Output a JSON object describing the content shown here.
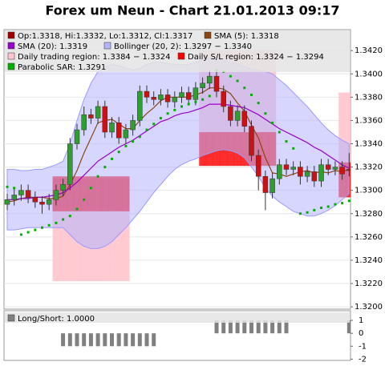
{
  "chart_data": [
    {
      "type": "candlestick",
      "title": "Forex um Neun - Chart 21.01.2013 09:17",
      "ylim": [
        1.3198,
        1.3438
      ],
      "yticks": [
        {
          "value": 1.32,
          "label": "1.3200"
        },
        {
          "value": 1.322,
          "label": "1.3220"
        },
        {
          "value": 1.324,
          "label": "1.3240"
        },
        {
          "value": 1.326,
          "label": "1.3260"
        },
        {
          "value": 1.328,
          "label": "1.3280"
        },
        {
          "value": 1.33,
          "label": "1.3300"
        },
        {
          "value": 1.332,
          "label": "1.3320"
        },
        {
          "value": 1.334,
          "label": "1.3340"
        },
        {
          "value": 1.336,
          "label": "1.3360"
        },
        {
          "value": 1.338,
          "label": "1.3380"
        },
        {
          "value": 1.34,
          "label": "1.3400"
        },
        {
          "value": 1.342,
          "label": "1.3420"
        }
      ],
      "grid": true,
      "series": [
        {
          "type": "candlestick",
          "name": "Op:1.3318, Hi:1.3332, Lo:1.3312, Cl:1.3317",
          "color": "#a00000",
          "up_color": "#2e9e2e",
          "down_color": "#cc1111",
          "open": [
            1.3288,
            1.3292,
            1.3296,
            1.33,
            1.3294,
            1.329,
            1.3288,
            1.3292,
            1.33,
            1.3305,
            1.334,
            1.3352,
            1.3365,
            1.3362,
            1.3372,
            1.335,
            1.3358,
            1.3345,
            1.3352,
            1.336,
            1.3385,
            1.338,
            1.3378,
            1.3382,
            1.3376,
            1.338,
            1.3384,
            1.3378,
            1.3388,
            1.3392,
            1.3398,
            1.3385,
            1.3372,
            1.336,
            1.3368,
            1.3355,
            1.333,
            1.3312,
            1.3298,
            1.331,
            1.3322,
            1.3318,
            1.332,
            1.3312,
            1.3316,
            1.3308,
            1.3322,
            1.3318,
            1.332,
            1.3318
          ],
          "high": [
            1.3297,
            1.3301,
            1.3305,
            1.3305,
            1.3299,
            1.3295,
            1.3297,
            1.3305,
            1.331,
            1.3345,
            1.3357,
            1.3372,
            1.337,
            1.3377,
            1.3377,
            1.3363,
            1.3363,
            1.3357,
            1.3365,
            1.339,
            1.339,
            1.3385,
            1.3387,
            1.3387,
            1.3385,
            1.3389,
            1.3389,
            1.3393,
            1.3397,
            1.3403,
            1.3403,
            1.339,
            1.3377,
            1.3373,
            1.3373,
            1.336,
            1.3335,
            1.3317,
            1.3315,
            1.3327,
            1.3327,
            1.3325,
            1.3325,
            1.3321,
            1.3321,
            1.3327,
            1.3327,
            1.3325,
            1.3325,
            1.3332
          ],
          "low": [
            1.3283,
            1.3287,
            1.3291,
            1.3289,
            1.3285,
            1.328,
            1.3283,
            1.3287,
            1.3295,
            1.33,
            1.3335,
            1.3347,
            1.3357,
            1.3357,
            1.3345,
            1.3345,
            1.334,
            1.334,
            1.3347,
            1.3355,
            1.3375,
            1.3373,
            1.3373,
            1.3371,
            1.3371,
            1.3375,
            1.3373,
            1.3373,
            1.3383,
            1.3387,
            1.338,
            1.3367,
            1.3355,
            1.3355,
            1.335,
            1.3325,
            1.33,
            1.3283,
            1.3293,
            1.3305,
            1.3313,
            1.3313,
            1.3305,
            1.3307,
            1.3303,
            1.3303,
            1.3313,
            1.3313,
            1.3309,
            1.3312
          ],
          "close": [
            1.3292,
            1.3296,
            1.33,
            1.3294,
            1.329,
            1.3288,
            1.3292,
            1.33,
            1.3305,
            1.334,
            1.3352,
            1.3365,
            1.3362,
            1.3372,
            1.335,
            1.3358,
            1.3345,
            1.3352,
            1.336,
            1.3385,
            1.338,
            1.3378,
            1.3382,
            1.3376,
            1.338,
            1.3384,
            1.3378,
            1.3388,
            1.3392,
            1.3398,
            1.3385,
            1.3372,
            1.336,
            1.3368,
            1.3355,
            1.333,
            1.3312,
            1.3298,
            1.331,
            1.3322,
            1.3318,
            1.332,
            1.3312,
            1.3316,
            1.3308,
            1.3322,
            1.3318,
            1.332,
            1.3314,
            1.3317
          ]
        },
        {
          "type": "line",
          "name": "SMA (5): 1.3318",
          "color": "#8b4513",
          "values": [
            1.329,
            1.3291,
            1.3293,
            1.3294,
            1.3294,
            1.3294,
            1.3293,
            1.3293,
            1.3295,
            1.3305,
            1.3317,
            1.3332,
            1.3345,
            1.3358,
            1.336,
            1.3361,
            1.3357,
            1.3353,
            1.3353,
            1.336,
            1.3366,
            1.3371,
            1.3377,
            1.338,
            1.338,
            1.338,
            1.338,
            1.3382,
            1.3384,
            1.3388,
            1.3388,
            1.3387,
            1.3383,
            1.3375,
            1.3368,
            1.3356,
            1.3345,
            1.3328,
            1.3315,
            1.3314,
            1.3312,
            1.3314,
            1.3316,
            1.3317,
            1.3315,
            1.3316,
            1.3315,
            1.3317,
            1.3316,
            1.3318
          ]
        },
        {
          "type": "line",
          "name": "SMA (20): 1.3319",
          "color": "#9900cc",
          "values": [
            1.3292,
            1.3292,
            1.3293,
            1.3293,
            1.3294,
            1.3294,
            1.3295,
            1.3296,
            1.3298,
            1.3302,
            1.3307,
            1.3313,
            1.3319,
            1.3325,
            1.3329,
            1.3333,
            1.3337,
            1.334,
            1.3343,
            1.3347,
            1.3351,
            1.3355,
            1.3359,
            1.3361,
            1.3364,
            1.3366,
            1.3367,
            1.3369,
            1.3371,
            1.3374,
            1.3374,
            1.3374,
            1.3373,
            1.3372,
            1.3371,
            1.3368,
            1.3365,
            1.3361,
            1.3357,
            1.3353,
            1.335,
            1.3347,
            1.3344,
            1.3341,
            1.3337,
            1.3334,
            1.333,
            1.3326,
            1.3322,
            1.3319
          ]
        },
        {
          "type": "band",
          "name": "Bollinger (20, 2): 1.3297 − 1.3340",
          "color": "#b4b4ff",
          "upper": [
            1.3318,
            1.3318,
            1.3317,
            1.3317,
            1.3318,
            1.3318,
            1.332,
            1.3322,
            1.3325,
            1.334,
            1.336,
            1.3378,
            1.3392,
            1.3402,
            1.3406,
            1.3408,
            1.3407,
            1.3405,
            1.3403,
            1.3405,
            1.3408,
            1.341,
            1.341,
            1.3409,
            1.3408,
            1.3408,
            1.3408,
            1.341,
            1.3412,
            1.3414,
            1.3413,
            1.3412,
            1.341,
            1.3408,
            1.3406,
            1.3404,
            1.3403,
            1.3402,
            1.34,
            1.3395,
            1.339,
            1.3384,
            1.3378,
            1.3372,
            1.3365,
            1.3358,
            1.3352,
            1.3347,
            1.3343,
            1.334
          ],
          "lower": [
            1.3266,
            1.3266,
            1.3267,
            1.3268,
            1.3268,
            1.3268,
            1.3268,
            1.3268,
            1.3268,
            1.3262,
            1.3256,
            1.3252,
            1.325,
            1.325,
            1.3252,
            1.3256,
            1.3262,
            1.3268,
            1.3275,
            1.3282,
            1.329,
            1.3298,
            1.3305,
            1.3312,
            1.3318,
            1.3322,
            1.3325,
            1.3327,
            1.333,
            1.3332,
            1.3334,
            1.3335,
            1.3334,
            1.3332,
            1.3328,
            1.332,
            1.3312,
            1.3302,
            1.3295,
            1.329,
            1.3286,
            1.3282,
            1.328,
            1.3278,
            1.3278,
            1.328,
            1.3283,
            1.3287,
            1.3292,
            1.3297
          ]
        },
        {
          "type": "region",
          "name": "Daily trading region: 1.3384 − 1.3324",
          "color": "#ffc4cc",
          "upper": [
            null,
            null,
            null,
            null,
            null,
            null,
            null,
            1.331,
            1.331,
            1.331,
            1.331,
            1.331,
            1.331,
            1.331,
            1.331,
            1.331,
            1.331,
            1.331,
            null,
            null,
            null,
            null,
            null,
            null,
            null,
            null,
            null,
            null,
            1.342,
            1.342,
            1.342,
            1.342,
            1.342,
            1.342,
            1.342,
            1.342,
            1.342,
            1.342,
            1.342,
            null,
            null,
            null,
            null,
            null,
            null,
            null,
            null,
            null,
            1.3384,
            1.3384
          ],
          "lower": [
            null,
            null,
            null,
            null,
            null,
            null,
            null,
            1.3222,
            1.3222,
            1.3222,
            1.3222,
            1.3222,
            1.3222,
            1.3222,
            1.3222,
            1.3222,
            1.3222,
            1.3222,
            null,
            null,
            null,
            null,
            null,
            null,
            null,
            null,
            null,
            null,
            1.335,
            1.335,
            1.335,
            1.335,
            1.335,
            1.335,
            1.335,
            1.335,
            1.335,
            1.335,
            1.335,
            null,
            null,
            null,
            null,
            null,
            null,
            null,
            null,
            null,
            1.3324,
            1.3324
          ]
        },
        {
          "type": "region",
          "name": "Daily S/L region: 1.3324 − 1.3294",
          "color": "#ff0000",
          "upper": [
            null,
            null,
            null,
            null,
            null,
            null,
            null,
            1.3312,
            1.3312,
            1.3312,
            1.3312,
            1.3312,
            1.3312,
            1.3312,
            1.3312,
            1.3312,
            1.3312,
            1.3312,
            null,
            null,
            null,
            null,
            null,
            null,
            null,
            null,
            null,
            null,
            1.335,
            1.335,
            1.335,
            1.335,
            1.335,
            1.335,
            1.335,
            1.335,
            1.335,
            1.335,
            1.335,
            null,
            null,
            null,
            null,
            null,
            null,
            null,
            null,
            null,
            1.3324,
            1.3324
          ],
          "lower": [
            null,
            null,
            null,
            null,
            null,
            null,
            null,
            1.3282,
            1.3282,
            1.3282,
            1.3282,
            1.3282,
            1.3282,
            1.3282,
            1.3282,
            1.3282,
            1.3282,
            1.3282,
            null,
            null,
            null,
            null,
            null,
            null,
            null,
            null,
            null,
            null,
            1.3321,
            1.3321,
            1.3321,
            1.3321,
            1.3321,
            1.3321,
            1.3321,
            1.3321,
            1.3321,
            1.3321,
            1.3321,
            null,
            null,
            null,
            null,
            null,
            null,
            null,
            null,
            null,
            1.3294,
            1.3294
          ]
        },
        {
          "type": "scatter",
          "name": "Parabolic SAR: 1.3291",
          "color": "#00b000",
          "values": [
            1.3303,
            1.3302,
            1.3262,
            1.3264,
            1.3266,
            1.3268,
            1.327,
            1.3272,
            1.3275,
            1.3278,
            1.3284,
            1.3292,
            1.3302,
            1.3312,
            1.332,
            1.3327,
            1.3333,
            1.3338,
            1.3342,
            1.3346,
            1.3352,
            1.3357,
            1.3362,
            1.3366,
            1.3369,
            1.3372,
            1.3374,
            1.3376,
            1.3378,
            1.3381,
            1.3403,
            1.3402,
            1.3398,
            1.3394,
            1.3388,
            1.3382,
            1.3375,
            1.3366,
            1.3358,
            1.335,
            1.3342,
            1.3336,
            1.328,
            1.3281,
            1.3283,
            1.3285,
            1.3286,
            1.3288,
            1.3289,
            1.3291
          ]
        }
      ]
    },
    {
      "type": "bar",
      "ylim": [
        -2.1,
        1.75
      ],
      "yticks": [
        1,
        0,
        -1,
        -2
      ],
      "series": [
        {
          "type": "bar",
          "name": "Long/Short: 1.0000",
          "color": "#808080",
          "values": [
            0,
            0,
            0,
            0,
            0,
            0,
            0,
            0,
            -1,
            -1,
            -1,
            -1,
            -1,
            -1,
            -1,
            -1,
            -1,
            -1,
            -1,
            -1,
            -1,
            -1,
            0,
            0,
            0,
            0,
            0,
            0,
            0,
            0,
            1,
            1,
            1,
            1,
            1,
            1,
            1,
            1,
            1,
            1,
            1,
            0,
            0,
            0,
            0,
            0,
            0,
            0,
            0,
            1
          ]
        }
      ]
    }
  ]
}
